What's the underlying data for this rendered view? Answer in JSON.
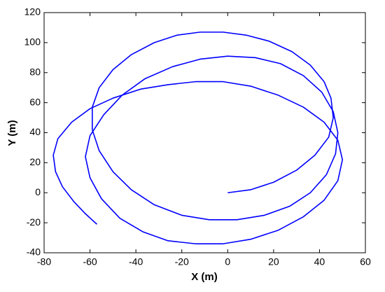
{
  "chart_data": {
    "type": "line",
    "xlabel": "X (m)",
    "ylabel": "Y (m)",
    "color": "#0000ff",
    "x": [
      0,
      10,
      20,
      30,
      38,
      44,
      46,
      45,
      42,
      36,
      28,
      18,
      8,
      -2,
      -12,
      -22,
      -32,
      -42,
      -50,
      -56,
      -59,
      -59,
      -56,
      -50,
      -42,
      -32,
      -20,
      -8,
      4,
      16,
      27,
      36,
      43,
      47,
      48,
      46,
      41,
      33,
      23,
      12,
      0,
      -12,
      -24,
      -36,
      -46,
      -54,
      -60,
      -62,
      -60,
      -55,
      -47,
      -37,
      -26,
      -14,
      -2,
      10,
      22,
      33,
      42,
      48,
      50,
      48,
      42,
      33,
      22,
      10,
      -2,
      -14,
      -26,
      -38,
      -50,
      -60,
      -68,
      -74,
      -76,
      -75,
      -72,
      -67,
      -62,
      -57
    ],
    "values": [
      0,
      2,
      7,
      15,
      25,
      37,
      50,
      63,
      74,
      85,
      94,
      101,
      105,
      107,
      107,
      105,
      100,
      92,
      82,
      70,
      57,
      42,
      28,
      14,
      2,
      -8,
      -15,
      -18,
      -18,
      -15,
      -9,
      0,
      12,
      26,
      40,
      54,
      67,
      78,
      86,
      90,
      91,
      89,
      84,
      76,
      65,
      52,
      38,
      24,
      10,
      -4,
      -17,
      -26,
      -32,
      -34,
      -34,
      -31,
      -25,
      -16,
      -5,
      8,
      22,
      35,
      47,
      57,
      65,
      71,
      74,
      74,
      72,
      69,
      63,
      56,
      47,
      36,
      25,
      14,
      4,
      -6,
      -14,
      -21
    ],
    "xlim": [
      -80,
      60
    ],
    "xticks": [
      -80,
      -60,
      -40,
      -20,
      0,
      20,
      40,
      60
    ],
    "ylim": [
      -40,
      120
    ],
    "yticks": [
      -40,
      -20,
      0,
      20,
      40,
      60,
      80,
      100,
      120
    ]
  }
}
